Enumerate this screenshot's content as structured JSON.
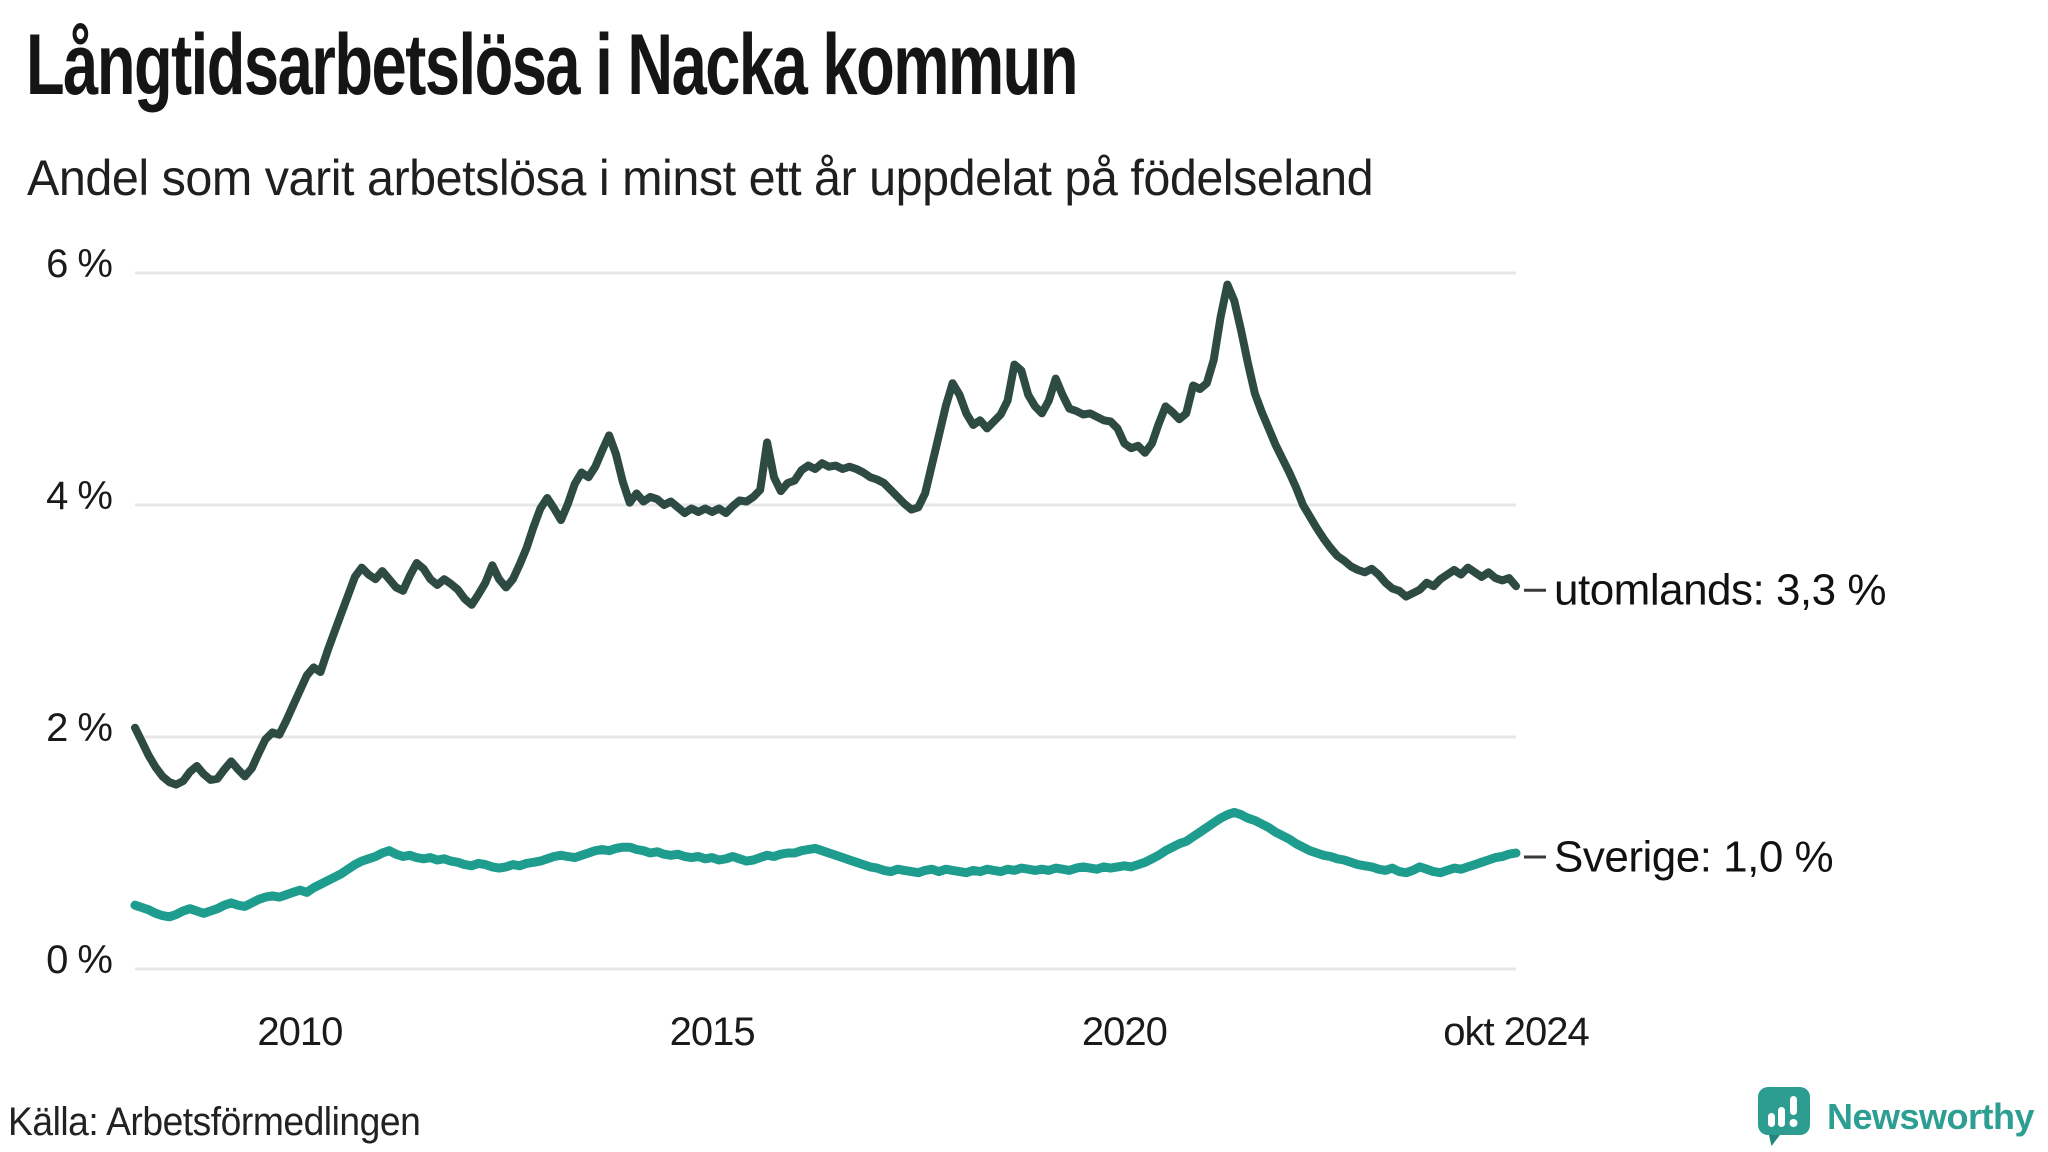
{
  "header": {
    "title": "Långtidsarbetslösa i Nacka kommun",
    "subtitle": "Andel som varit arbetslösa i minst ett år uppdelat på födelseland"
  },
  "footer": {
    "source": "Källa: Arbetsförmedlingen",
    "brand": "Newsworthy",
    "brand_color": "#2D9E92"
  },
  "chart_data": {
    "type": "line",
    "title": "Långtidsarbetslösa i Nacka kommun",
    "subtitle": "Andel som varit arbetslösa i minst ett år uppdelat på födelseland",
    "unit": "%",
    "x_start": "2008-01",
    "x_end": "2024-10",
    "x_frequency": "monthly",
    "ylim": [
      0,
      6.3
    ],
    "grid": true,
    "legend_position": "right-end-labels",
    "grid_color": "#e7e7ea",
    "label_dash_color": "#3a3a3a",
    "y_ticks": [
      {
        "value": 0,
        "label": "0 %"
      },
      {
        "value": 2,
        "label": "2 %"
      },
      {
        "value": 4,
        "label": "4 %"
      },
      {
        "value": 6,
        "label": "6 %"
      }
    ],
    "x_ticks": [
      {
        "month_index": 24,
        "label": "2010"
      },
      {
        "month_index": 84,
        "label": "2015"
      },
      {
        "month_index": 144,
        "label": "2020"
      },
      {
        "month_index": 201,
        "label": "okt 2024"
      }
    ],
    "series": [
      {
        "name": "utomlands",
        "label": "utomlands: 3,3 %",
        "last_value_text": "3,3 %",
        "color": "#2E4B43",
        "stroke_width": 8,
        "values": [
          2.08,
          1.96,
          1.84,
          1.74,
          1.66,
          1.61,
          1.59,
          1.62,
          1.7,
          1.75,
          1.68,
          1.63,
          1.64,
          1.72,
          1.79,
          1.72,
          1.66,
          1.73,
          1.86,
          1.98,
          2.04,
          2.02,
          2.14,
          2.27,
          2.4,
          2.53,
          2.6,
          2.56,
          2.74,
          2.9,
          3.06,
          3.22,
          3.38,
          3.46,
          3.4,
          3.36,
          3.43,
          3.36,
          3.29,
          3.26,
          3.39,
          3.5,
          3.45,
          3.36,
          3.31,
          3.36,
          3.32,
          3.27,
          3.19,
          3.14,
          3.23,
          3.33,
          3.48,
          3.36,
          3.29,
          3.36,
          3.49,
          3.63,
          3.81,
          3.97,
          4.06,
          3.97,
          3.87,
          4.01,
          4.18,
          4.28,
          4.24,
          4.33,
          4.47,
          4.6,
          4.44,
          4.2,
          4.02,
          4.1,
          4.03,
          4.07,
          4.05,
          4.0,
          4.03,
          3.98,
          3.93,
          3.97,
          3.94,
          3.97,
          3.94,
          3.97,
          3.93,
          3.99,
          4.04,
          4.03,
          4.07,
          4.13,
          4.54,
          4.24,
          4.12,
          4.19,
          4.21,
          4.3,
          4.34,
          4.31,
          4.36,
          4.33,
          4.34,
          4.31,
          4.33,
          4.31,
          4.28,
          4.24,
          4.22,
          4.19,
          4.13,
          4.07,
          4.01,
          3.96,
          3.98,
          4.1,
          4.35,
          4.6,
          4.85,
          5.05,
          4.95,
          4.79,
          4.69,
          4.73,
          4.66,
          4.72,
          4.78,
          4.9,
          5.21,
          5.16,
          4.95,
          4.85,
          4.79,
          4.9,
          5.09,
          4.95,
          4.83,
          4.81,
          4.78,
          4.79,
          4.76,
          4.73,
          4.72,
          4.66,
          4.53,
          4.49,
          4.51,
          4.45,
          4.53,
          4.7,
          4.85,
          4.8,
          4.74,
          4.79,
          5.03,
          5.0,
          5.05,
          5.25,
          5.62,
          5.9,
          5.76,
          5.5,
          5.22,
          4.96,
          4.8,
          4.66,
          4.52,
          4.4,
          4.28,
          4.15,
          4.0,
          3.9,
          3.8,
          3.71,
          3.63,
          3.56,
          3.52,
          3.47,
          3.44,
          3.42,
          3.45,
          3.4,
          3.33,
          3.28,
          3.26,
          3.21,
          3.24,
          3.27,
          3.33,
          3.3,
          3.36,
          3.4,
          3.44,
          3.4,
          3.46,
          3.42,
          3.38,
          3.42,
          3.37,
          3.35,
          3.37,
          3.3
        ]
      },
      {
        "name": "Sverige",
        "label": "Sverige: 1,0 %",
        "last_value_text": "1,0 %",
        "color": "#1E9D8F",
        "stroke_width": 9,
        "values": [
          0.55,
          0.53,
          0.51,
          0.48,
          0.46,
          0.45,
          0.47,
          0.5,
          0.52,
          0.5,
          0.48,
          0.5,
          0.52,
          0.55,
          0.57,
          0.55,
          0.54,
          0.57,
          0.6,
          0.62,
          0.63,
          0.62,
          0.64,
          0.66,
          0.68,
          0.66,
          0.7,
          0.73,
          0.76,
          0.79,
          0.82,
          0.86,
          0.9,
          0.93,
          0.95,
          0.97,
          1.0,
          1.02,
          0.99,
          0.97,
          0.98,
          0.96,
          0.95,
          0.96,
          0.94,
          0.95,
          0.93,
          0.92,
          0.9,
          0.89,
          0.91,
          0.9,
          0.88,
          0.87,
          0.88,
          0.9,
          0.89,
          0.91,
          0.92,
          0.93,
          0.95,
          0.97,
          0.98,
          0.97,
          0.96,
          0.98,
          1.0,
          1.02,
          1.03,
          1.02,
          1.04,
          1.05,
          1.05,
          1.03,
          1.02,
          1.0,
          1.01,
          0.99,
          0.98,
          0.99,
          0.97,
          0.96,
          0.97,
          0.95,
          0.96,
          0.94,
          0.95,
          0.97,
          0.95,
          0.93,
          0.94,
          0.96,
          0.98,
          0.97,
          0.99,
          1.0,
          1.0,
          1.02,
          1.03,
          1.04,
          1.02,
          1.0,
          0.98,
          0.96,
          0.94,
          0.92,
          0.9,
          0.88,
          0.87,
          0.85,
          0.84,
          0.86,
          0.85,
          0.84,
          0.83,
          0.85,
          0.86,
          0.84,
          0.86,
          0.85,
          0.84,
          0.83,
          0.85,
          0.84,
          0.86,
          0.85,
          0.84,
          0.86,
          0.85,
          0.87,
          0.86,
          0.85,
          0.86,
          0.85,
          0.87,
          0.86,
          0.85,
          0.87,
          0.88,
          0.87,
          0.86,
          0.88,
          0.87,
          0.88,
          0.89,
          0.88,
          0.9,
          0.92,
          0.95,
          0.98,
          1.02,
          1.05,
          1.08,
          1.1,
          1.14,
          1.18,
          1.22,
          1.26,
          1.3,
          1.33,
          1.35,
          1.33,
          1.3,
          1.28,
          1.25,
          1.22,
          1.18,
          1.15,
          1.12,
          1.08,
          1.05,
          1.02,
          1.0,
          0.98,
          0.97,
          0.95,
          0.94,
          0.92,
          0.9,
          0.89,
          0.88,
          0.86,
          0.85,
          0.87,
          0.84,
          0.83,
          0.85,
          0.88,
          0.86,
          0.84,
          0.83,
          0.85,
          0.87,
          0.86,
          0.88,
          0.9,
          0.92,
          0.94,
          0.96,
          0.97,
          0.99,
          1.0
        ]
      }
    ]
  }
}
